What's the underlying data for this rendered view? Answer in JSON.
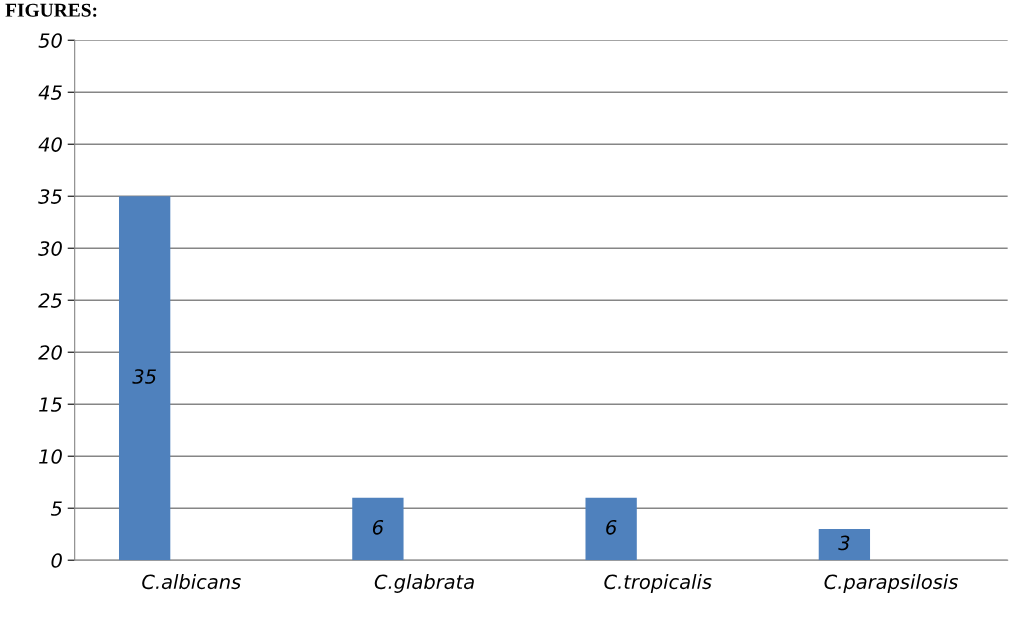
{
  "chart_data": {
    "type": "bar",
    "title": "FIGURES:",
    "categories": [
      "C.albicans",
      "C.glabrata",
      "C.tropicalis",
      "C.parapsilosis"
    ],
    "values": [
      35,
      6,
      6,
      3
    ],
    "color": "#4f81bd",
    "ylim": [
      0,
      50
    ],
    "yticks": [
      0,
      5,
      10,
      15,
      20,
      25,
      30,
      35,
      40,
      45,
      50
    ],
    "grid": "y",
    "data_labels": true
  }
}
